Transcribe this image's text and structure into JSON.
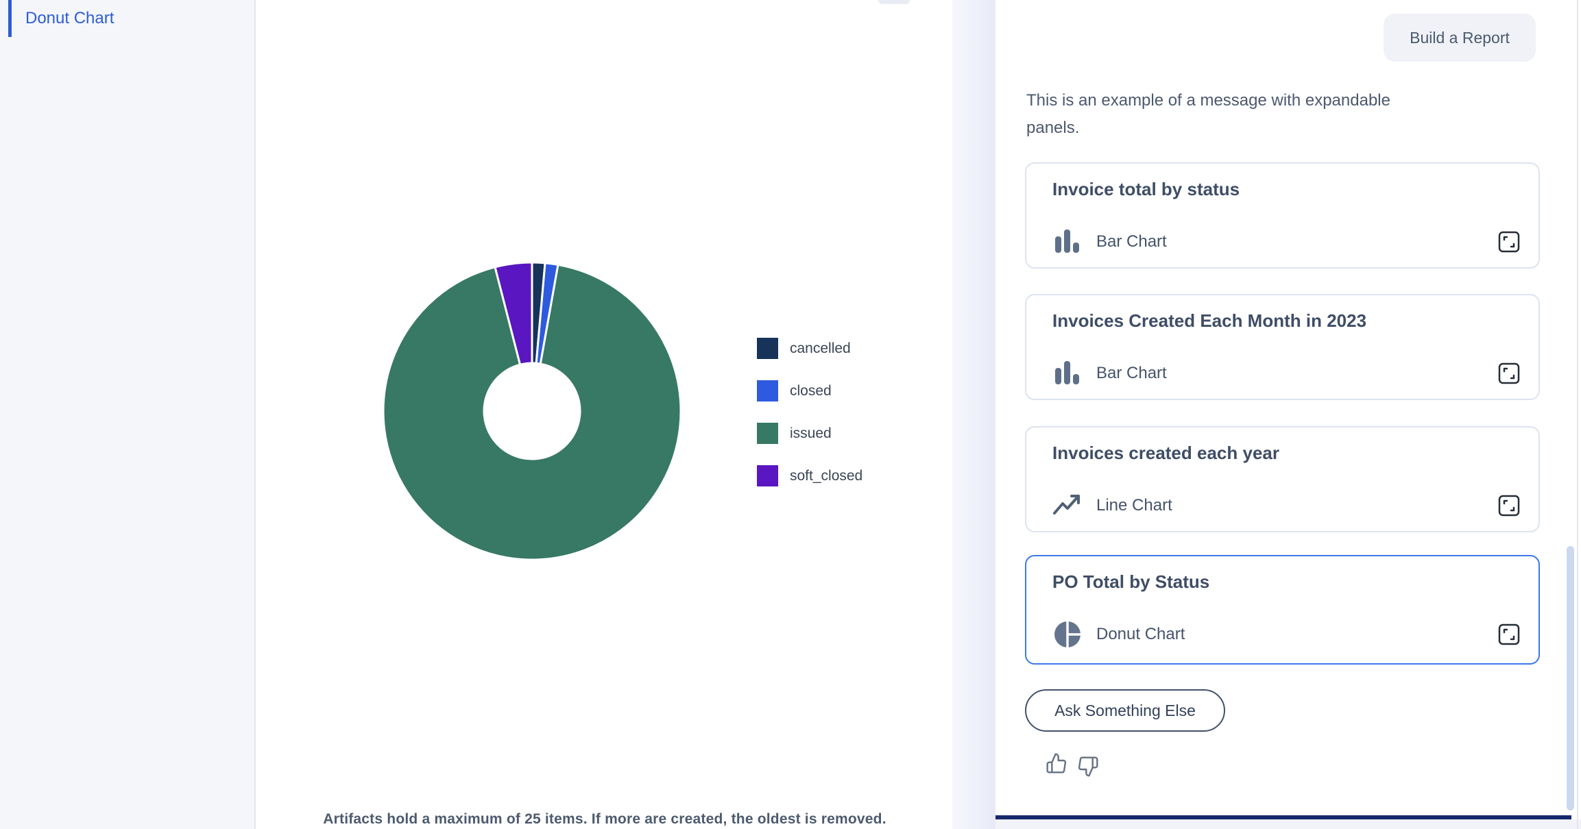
{
  "sidebar": {
    "active_item": "Donut Chart"
  },
  "main": {
    "caption": "Artifacts hold a maximum of 25 items. If more are created, the oldest is removed."
  },
  "chart_data": {
    "type": "pie",
    "subtype": "donut",
    "title": "PO Total by Status",
    "labels": [
      "cancelled",
      "closed",
      "issued",
      "soft_closed"
    ],
    "values_pct_estimated": [
      1.4,
      1.4,
      93.2,
      4.0
    ],
    "colors": [
      "#17335a",
      "#2e5ae0",
      "#377964",
      "#5a16c0"
    ],
    "donut_hole_ratio": 0.32,
    "start_angle_deg": 0,
    "direction": "clockwise",
    "legend_position": "right",
    "slice_gap_color": "#ffffff"
  },
  "chat": {
    "build_report_label": "Build a Report",
    "message": "This is an example of a message with expandable panels.",
    "panels": [
      {
        "title": "Invoice total by status",
        "chart_type": "Bar Chart",
        "icon": "bar-chart-icon",
        "selected": false
      },
      {
        "title": "Invoices Created Each Month in 2023",
        "chart_type": "Bar Chart",
        "icon": "bar-chart-icon",
        "selected": false
      },
      {
        "title": "Invoices created each year",
        "chart_type": "Line Chart",
        "icon": "line-chart-icon",
        "selected": false
      },
      {
        "title": "PO Total by Status",
        "chart_type": "Donut Chart",
        "icon": "donut-chart-icon",
        "selected": true
      }
    ],
    "ask_button_label": "Ask Something Else",
    "accent_color": "#3b78ee",
    "bottom_bar_color": "#17286b"
  }
}
